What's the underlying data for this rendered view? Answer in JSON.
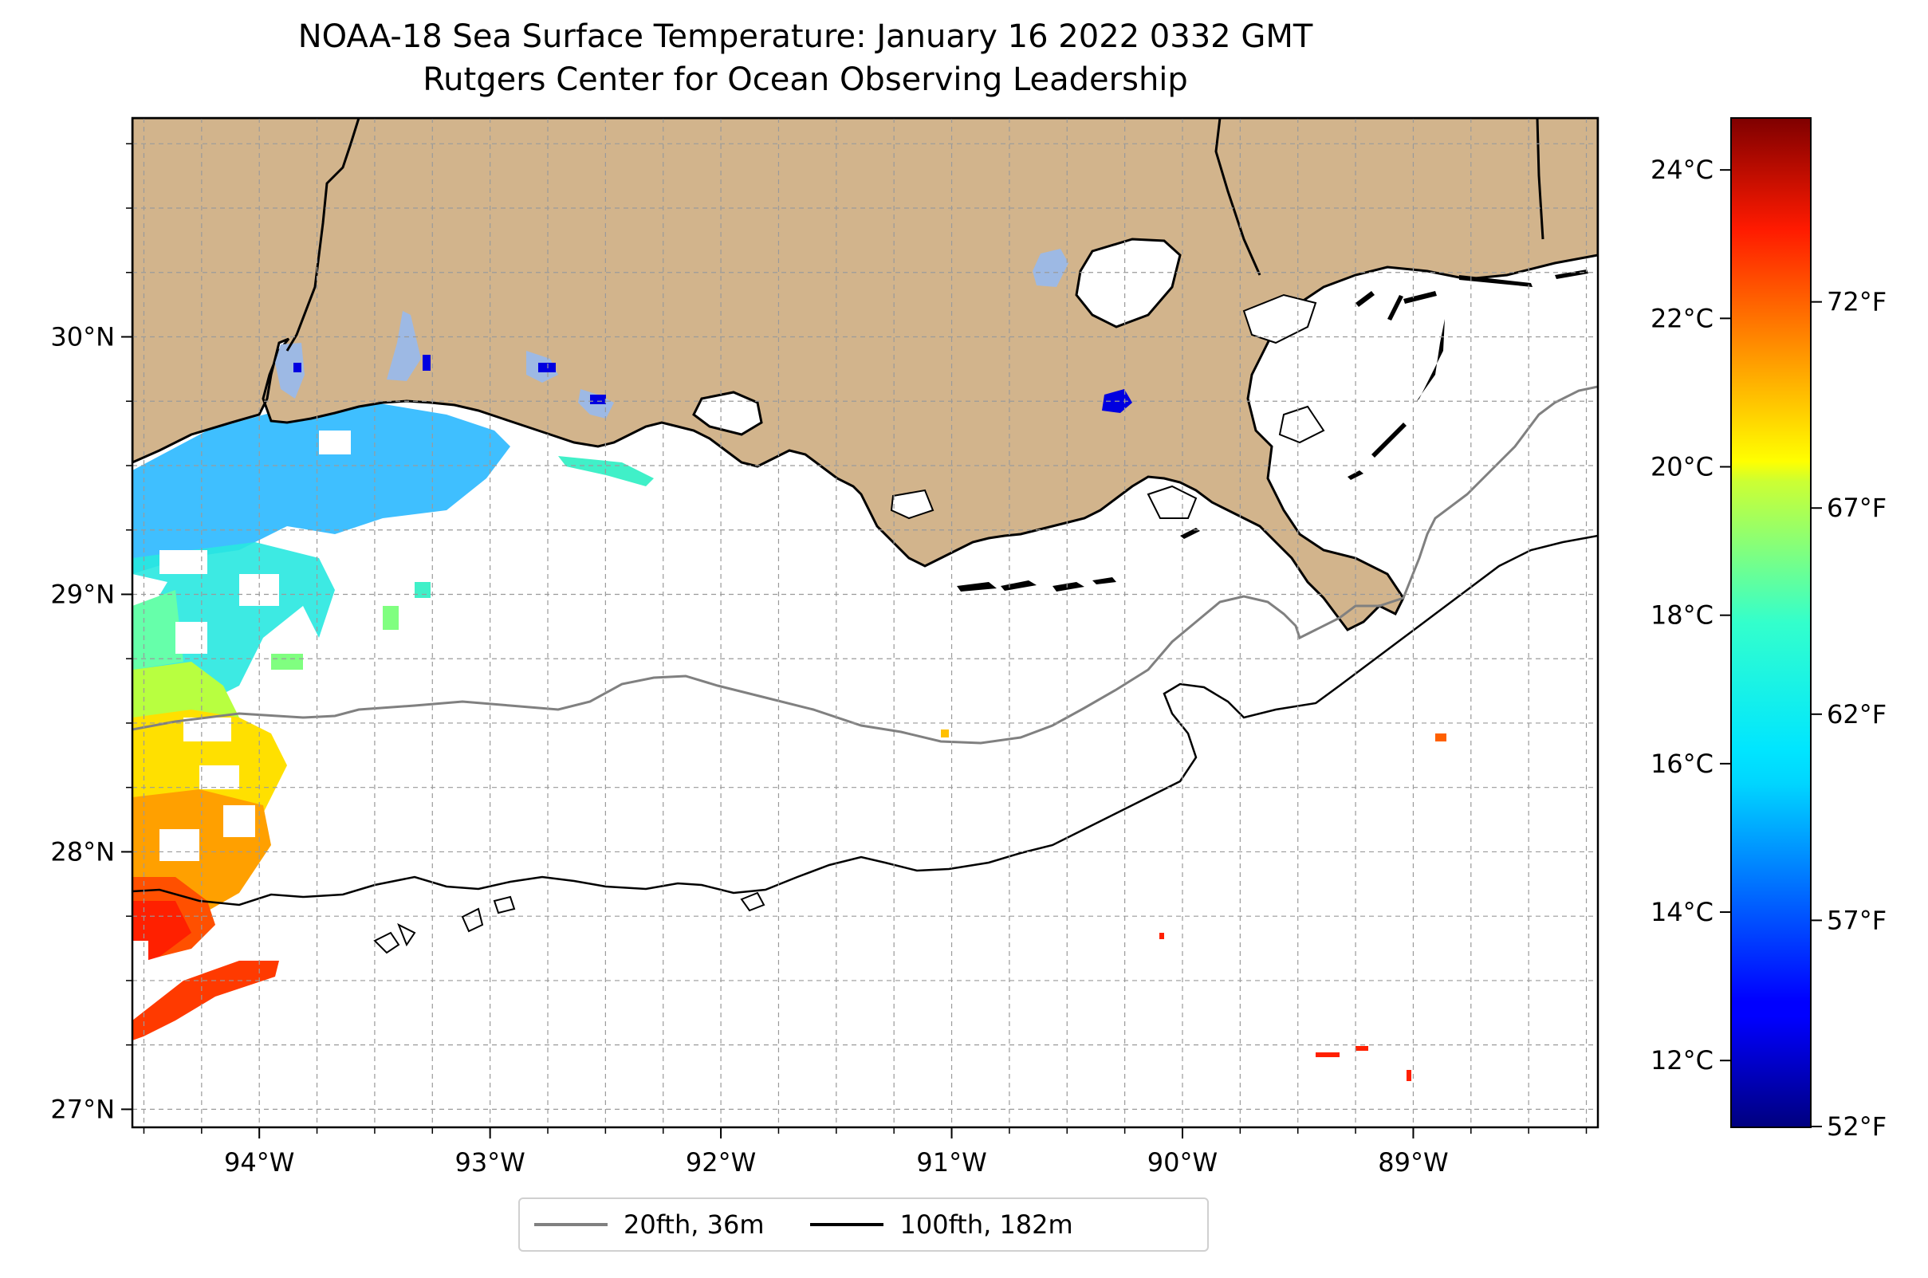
{
  "title_line1": "NOAA-18 Sea Surface Temperature: January 16 2022 0332 GMT",
  "title_line2": "Rutgers Center for Ocean Observing Leadership",
  "map": {
    "lon_range": [
      -94.55,
      -88.2
    ],
    "lat_range": [
      26.93,
      30.85
    ],
    "lon_ticks": [
      {
        "value": -94,
        "label": "94°W"
      },
      {
        "value": -93,
        "label": "93°W"
      },
      {
        "value": -92,
        "label": "92°W"
      },
      {
        "value": -91,
        "label": "91°W"
      },
      {
        "value": -90,
        "label": "90°W"
      },
      {
        "value": -89,
        "label": "89°W"
      }
    ],
    "lat_ticks": [
      {
        "value": 27,
        "label": "27°N"
      },
      {
        "value": 28,
        "label": "28°N"
      },
      {
        "value": 29,
        "label": "29°N"
      },
      {
        "value": 30,
        "label": "30°N"
      }
    ],
    "gridlines": true,
    "land_color": "#d2b48c",
    "lake_color": "#9db9e4"
  },
  "legend": {
    "placement": "bottom-center",
    "items": [
      {
        "label": "20fth, 36m",
        "color": "#808080"
      },
      {
        "label": "100fth, 182m",
        "color": "#000000"
      }
    ]
  },
  "colorbar": {
    "colormap": "jet",
    "range_c": [
      11.1,
      24.7
    ],
    "celsius_ticks": [
      {
        "value": 12,
        "label": "12°C"
      },
      {
        "value": 14,
        "label": "14°C"
      },
      {
        "value": 16,
        "label": "16°C"
      },
      {
        "value": 18,
        "label": "18°C"
      },
      {
        "value": 20,
        "label": "20°C"
      },
      {
        "value": 22,
        "label": "22°C"
      },
      {
        "value": 24,
        "label": "24°C"
      }
    ],
    "fahrenheit_ticks": [
      {
        "value": 52,
        "label": "52°F"
      },
      {
        "value": 57,
        "label": "57°F"
      },
      {
        "value": 62,
        "label": "62°F"
      },
      {
        "value": 67,
        "label": "67°F"
      },
      {
        "value": 72,
        "label": "72°F"
      }
    ]
  }
}
